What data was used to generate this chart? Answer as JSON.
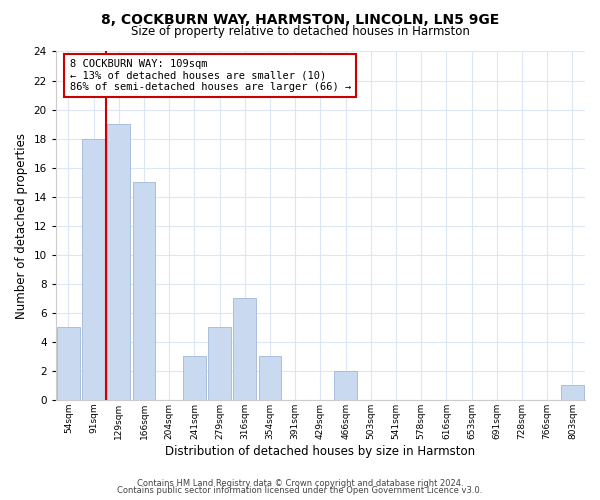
{
  "title": "8, COCKBURN WAY, HARMSTON, LINCOLN, LN5 9GE",
  "subtitle": "Size of property relative to detached houses in Harmston",
  "xlabel": "Distribution of detached houses by size in Harmston",
  "ylabel": "Number of detached properties",
  "bin_labels": [
    "54sqm",
    "91sqm",
    "129sqm",
    "166sqm",
    "204sqm",
    "241sqm",
    "279sqm",
    "316sqm",
    "354sqm",
    "391sqm",
    "429sqm",
    "466sqm",
    "503sqm",
    "541sqm",
    "578sqm",
    "616sqm",
    "653sqm",
    "691sqm",
    "728sqm",
    "766sqm",
    "803sqm"
  ],
  "bar_heights": [
    5,
    18,
    19,
    15,
    0,
    3,
    5,
    7,
    3,
    0,
    0,
    2,
    0,
    0,
    0,
    0,
    0,
    0,
    0,
    0,
    1
  ],
  "bar_color": "#c9d9f0",
  "bar_edge_color": "#a0b8d8",
  "highlight_color": "#cc0000",
  "annotation_text": "8 COCKBURN WAY: 109sqm\n← 13% of detached houses are smaller (10)\n86% of semi-detached houses are larger (66) →",
  "annotation_box_color": "#ffffff",
  "annotation_box_edge": "#cc0000",
  "ylim": [
    0,
    24
  ],
  "yticks": [
    0,
    2,
    4,
    6,
    8,
    10,
    12,
    14,
    16,
    18,
    20,
    22,
    24
  ],
  "footer1": "Contains HM Land Registry data © Crown copyright and database right 2024.",
  "footer2": "Contains public sector information licensed under the Open Government Licence v3.0.",
  "bg_color": "#ffffff",
  "grid_color": "#dce6f5"
}
